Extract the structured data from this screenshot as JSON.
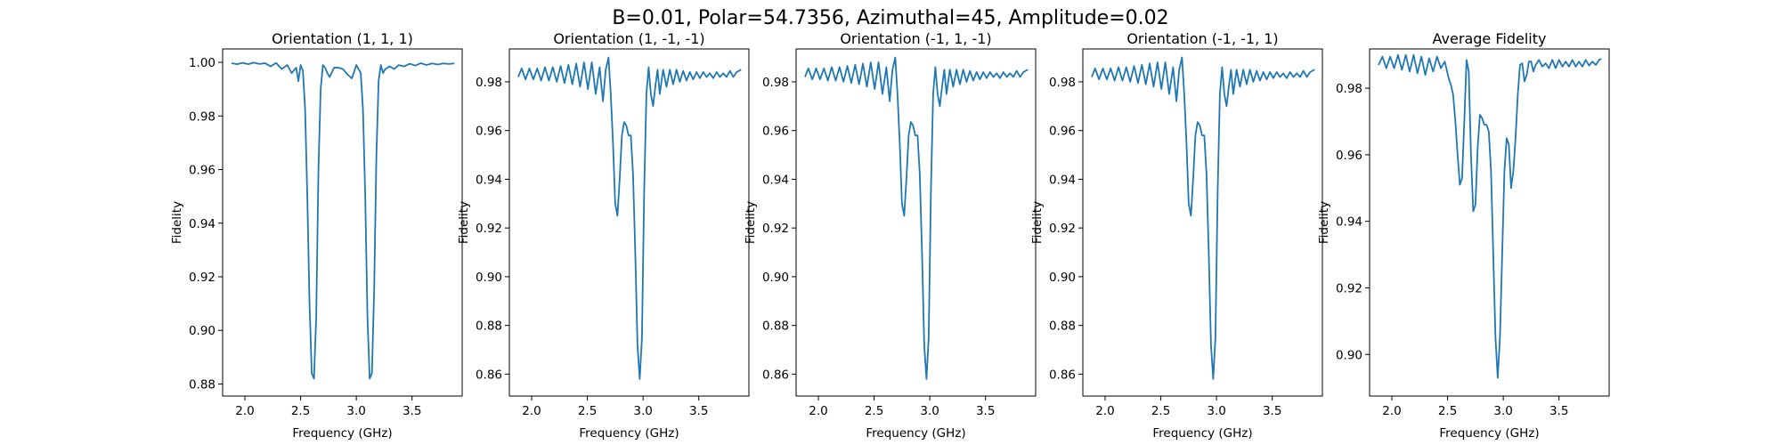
{
  "figure_title": "B=0.01, Polar=54.7356, Azimuthal=45, Amplitude=0.02",
  "colors": {
    "series": "#1f77b4",
    "axes": "#000000",
    "background": "#ffffff"
  },
  "chart_data": [
    {
      "type": "line",
      "title": "Orientation (1, 1, 1)",
      "xlabel": "Frequency (GHz)",
      "ylabel": "Fidelity",
      "xlim": [
        1.8,
        3.95
      ],
      "ylim": [
        0.8755,
        1.005
      ],
      "xticks": [
        2.0,
        2.5,
        3.0,
        3.5
      ],
      "xtick_labels": [
        "2.0",
        "2.5",
        "3.0",
        "3.5"
      ],
      "yticks": [
        0.88,
        0.9,
        0.92,
        0.94,
        0.96,
        0.98,
        1.0
      ],
      "ytick_labels": [
        "0.88",
        "0.90",
        "0.92",
        "0.94",
        "0.96",
        "0.98",
        "1.00"
      ],
      "grid": false,
      "series": [
        {
          "x": [
            1.88,
            1.93,
            1.98,
            2.03,
            2.08,
            2.13,
            2.18,
            2.23,
            2.28,
            2.33,
            2.38,
            2.42,
            2.46,
            2.48,
            2.5,
            2.52,
            2.54,
            2.56,
            2.58,
            2.6,
            2.62,
            2.64,
            2.66,
            2.68,
            2.7,
            2.72,
            2.74,
            2.76,
            2.8,
            2.84,
            2.88,
            2.92,
            2.96,
            3.0,
            3.04,
            3.06,
            3.08,
            3.1,
            3.12,
            3.14,
            3.16,
            3.18,
            3.2,
            3.22,
            3.24,
            3.26,
            3.28,
            3.3,
            3.34,
            3.38,
            3.43,
            3.48,
            3.53,
            3.58,
            3.63,
            3.68,
            3.73,
            3.78,
            3.83,
            3.88
          ],
          "y": [
            0.9997,
            0.9993,
            0.9998,
            0.9993,
            0.9999,
            0.9994,
            0.9997,
            0.9985,
            0.9998,
            0.9975,
            0.999,
            0.996,
            0.998,
            0.993,
            0.999,
            0.997,
            0.983,
            0.95,
            0.91,
            0.884,
            0.882,
            0.905,
            0.96,
            0.99,
            0.999,
            0.998,
            0.996,
            0.9945,
            0.998,
            0.998,
            0.9975,
            0.9955,
            0.994,
            0.999,
            0.996,
            0.982,
            0.95,
            0.905,
            0.882,
            0.884,
            0.915,
            0.965,
            0.993,
            0.999,
            0.996,
            0.9975,
            0.998,
            0.9985,
            0.9975,
            0.999,
            0.9985,
            0.9995,
            0.9988,
            0.9997,
            0.999,
            0.9996,
            0.9992,
            0.9996,
            0.9994,
            0.9996
          ]
        }
      ]
    },
    {
      "type": "line",
      "title": "Orientation (1, -1, -1)",
      "xlabel": "Frequency (GHz)",
      "ylabel": "Fidelity",
      "xlim": [
        1.8,
        3.95
      ],
      "ylim": [
        0.851,
        0.9935
      ],
      "xticks": [
        2.0,
        2.5,
        3.0,
        3.5
      ],
      "xtick_labels": [
        "2.0",
        "2.5",
        "3.0",
        "3.5"
      ],
      "yticks": [
        0.86,
        0.88,
        0.9,
        0.92,
        0.94,
        0.96,
        0.98
      ],
      "ytick_labels": [
        "0.86",
        "0.88",
        "0.90",
        "0.92",
        "0.94",
        "0.96",
        "0.98"
      ],
      "grid": false,
      "series": [
        {
          "x": [
            1.88,
            1.91,
            1.945,
            1.98,
            2.015,
            2.05,
            2.085,
            2.12,
            2.155,
            2.19,
            2.225,
            2.26,
            2.295,
            2.33,
            2.365,
            2.4,
            2.435,
            2.47,
            2.505,
            2.54,
            2.575,
            2.61,
            2.64,
            2.665,
            2.69,
            2.71,
            2.73,
            2.75,
            2.77,
            2.79,
            2.81,
            2.83,
            2.85,
            2.87,
            2.89,
            2.91,
            2.93,
            2.95,
            2.97,
            2.99,
            3.01,
            3.03,
            3.05,
            3.07,
            3.09,
            3.11,
            3.13,
            3.15,
            3.18,
            3.21,
            3.24,
            3.27,
            3.3,
            3.33,
            3.36,
            3.39,
            3.42,
            3.45,
            3.48,
            3.51,
            3.54,
            3.57,
            3.6,
            3.63,
            3.66,
            3.69,
            3.72,
            3.75,
            3.78,
            3.81,
            3.84,
            3.88
          ],
          "y": [
            0.982,
            0.9855,
            0.981,
            0.9855,
            0.981,
            0.9855,
            0.9805,
            0.986,
            0.9805,
            0.986,
            0.98,
            0.9865,
            0.9795,
            0.987,
            0.979,
            0.9875,
            0.978,
            0.988,
            0.977,
            0.988,
            0.975,
            0.986,
            0.972,
            0.985,
            0.99,
            0.975,
            0.955,
            0.93,
            0.925,
            0.94,
            0.958,
            0.9635,
            0.962,
            0.958,
            0.958,
            0.942,
            0.91,
            0.872,
            0.858,
            0.875,
            0.935,
            0.975,
            0.986,
            0.975,
            0.97,
            0.978,
            0.985,
            0.975,
            0.985,
            0.978,
            0.985,
            0.979,
            0.985,
            0.98,
            0.9845,
            0.9805,
            0.984,
            0.981,
            0.984,
            0.9815,
            0.984,
            0.982,
            0.9835,
            0.9815,
            0.984,
            0.982,
            0.9835,
            0.982,
            0.9845,
            0.982,
            0.984,
            0.985
          ]
        }
      ]
    },
    {
      "type": "line",
      "title": "Orientation (-1, 1, -1)",
      "xlabel": "Frequency (GHz)",
      "ylabel": "Fidelity",
      "xlim": [
        1.8,
        3.95
      ],
      "ylim": [
        0.851,
        0.9935
      ],
      "xticks": [
        2.0,
        2.5,
        3.0,
        3.5
      ],
      "xtick_labels": [
        "2.0",
        "2.5",
        "3.0",
        "3.5"
      ],
      "yticks": [
        0.86,
        0.88,
        0.9,
        0.92,
        0.94,
        0.96,
        0.98
      ],
      "ytick_labels": [
        "0.86",
        "0.88",
        "0.90",
        "0.92",
        "0.94",
        "0.96",
        "0.98"
      ],
      "grid": false,
      "series": [
        {
          "x": [
            1.88,
            1.91,
            1.945,
            1.98,
            2.015,
            2.05,
            2.085,
            2.12,
            2.155,
            2.19,
            2.225,
            2.26,
            2.295,
            2.33,
            2.365,
            2.4,
            2.435,
            2.47,
            2.505,
            2.54,
            2.575,
            2.61,
            2.64,
            2.665,
            2.69,
            2.71,
            2.73,
            2.75,
            2.77,
            2.79,
            2.81,
            2.83,
            2.85,
            2.87,
            2.89,
            2.91,
            2.93,
            2.95,
            2.97,
            2.99,
            3.01,
            3.03,
            3.05,
            3.07,
            3.09,
            3.11,
            3.13,
            3.15,
            3.18,
            3.21,
            3.24,
            3.27,
            3.3,
            3.33,
            3.36,
            3.39,
            3.42,
            3.45,
            3.48,
            3.51,
            3.54,
            3.57,
            3.6,
            3.63,
            3.66,
            3.69,
            3.72,
            3.75,
            3.78,
            3.81,
            3.84,
            3.88
          ],
          "y": [
            0.982,
            0.9855,
            0.981,
            0.9855,
            0.981,
            0.9855,
            0.9805,
            0.986,
            0.9805,
            0.986,
            0.98,
            0.9865,
            0.9795,
            0.987,
            0.979,
            0.9875,
            0.978,
            0.988,
            0.977,
            0.988,
            0.975,
            0.986,
            0.972,
            0.985,
            0.99,
            0.975,
            0.955,
            0.93,
            0.925,
            0.94,
            0.958,
            0.9635,
            0.962,
            0.958,
            0.958,
            0.942,
            0.91,
            0.872,
            0.858,
            0.875,
            0.935,
            0.975,
            0.986,
            0.975,
            0.97,
            0.978,
            0.985,
            0.975,
            0.985,
            0.978,
            0.985,
            0.979,
            0.985,
            0.98,
            0.9845,
            0.9805,
            0.984,
            0.981,
            0.984,
            0.9815,
            0.984,
            0.982,
            0.9835,
            0.9815,
            0.984,
            0.982,
            0.9835,
            0.982,
            0.9845,
            0.982,
            0.984,
            0.985
          ]
        }
      ]
    },
    {
      "type": "line",
      "title": "Orientation (-1, -1, 1)",
      "xlabel": "Frequency (GHz)",
      "ylabel": "Fidelity",
      "xlim": [
        1.8,
        3.95
      ],
      "ylim": [
        0.851,
        0.9935
      ],
      "xticks": [
        2.0,
        2.5,
        3.0,
        3.5
      ],
      "xtick_labels": [
        "2.0",
        "2.5",
        "3.0",
        "3.5"
      ],
      "yticks": [
        0.86,
        0.88,
        0.9,
        0.92,
        0.94,
        0.96,
        0.98
      ],
      "ytick_labels": [
        "0.86",
        "0.88",
        "0.90",
        "0.92",
        "0.94",
        "0.96",
        "0.98"
      ],
      "grid": false,
      "series": [
        {
          "x": [
            1.88,
            1.91,
            1.945,
            1.98,
            2.015,
            2.05,
            2.085,
            2.12,
            2.155,
            2.19,
            2.225,
            2.26,
            2.295,
            2.33,
            2.365,
            2.4,
            2.435,
            2.47,
            2.505,
            2.54,
            2.575,
            2.61,
            2.64,
            2.665,
            2.69,
            2.71,
            2.73,
            2.75,
            2.77,
            2.79,
            2.81,
            2.83,
            2.85,
            2.87,
            2.89,
            2.91,
            2.93,
            2.95,
            2.97,
            2.99,
            3.01,
            3.03,
            3.05,
            3.07,
            3.09,
            3.11,
            3.13,
            3.15,
            3.18,
            3.21,
            3.24,
            3.27,
            3.3,
            3.33,
            3.36,
            3.39,
            3.42,
            3.45,
            3.48,
            3.51,
            3.54,
            3.57,
            3.6,
            3.63,
            3.66,
            3.69,
            3.72,
            3.75,
            3.78,
            3.81,
            3.84,
            3.88
          ],
          "y": [
            0.982,
            0.9855,
            0.981,
            0.9855,
            0.981,
            0.9855,
            0.9805,
            0.986,
            0.9805,
            0.986,
            0.98,
            0.9865,
            0.9795,
            0.987,
            0.979,
            0.9875,
            0.978,
            0.988,
            0.977,
            0.988,
            0.975,
            0.986,
            0.972,
            0.985,
            0.99,
            0.975,
            0.955,
            0.93,
            0.925,
            0.94,
            0.958,
            0.9635,
            0.962,
            0.958,
            0.958,
            0.942,
            0.91,
            0.872,
            0.858,
            0.875,
            0.935,
            0.975,
            0.986,
            0.975,
            0.97,
            0.978,
            0.985,
            0.975,
            0.985,
            0.978,
            0.985,
            0.979,
            0.985,
            0.98,
            0.9845,
            0.9805,
            0.984,
            0.981,
            0.984,
            0.9815,
            0.984,
            0.982,
            0.9835,
            0.9815,
            0.984,
            0.982,
            0.9835,
            0.982,
            0.9845,
            0.982,
            0.984,
            0.985
          ]
        }
      ]
    },
    {
      "type": "line",
      "title": "Average Fidelity",
      "xlabel": "Frequency (GHz)",
      "ylabel": "Fidelity",
      "xlim": [
        1.8,
        3.95
      ],
      "ylim": [
        0.8875,
        0.9918
      ],
      "xticks": [
        2.0,
        2.5,
        3.0,
        3.5
      ],
      "xtick_labels": [
        "2.0",
        "2.5",
        "3.0",
        "3.5"
      ],
      "yticks": [
        0.9,
        0.92,
        0.94,
        0.96,
        0.98
      ],
      "ytick_labels": [
        "0.90",
        "0.92",
        "0.94",
        "0.96",
        "0.98"
      ],
      "grid": false,
      "series": [
        {
          "x": [
            1.88,
            1.915,
            1.95,
            1.985,
            2.02,
            2.055,
            2.09,
            2.125,
            2.16,
            2.195,
            2.23,
            2.265,
            2.3,
            2.335,
            2.37,
            2.405,
            2.44,
            2.475,
            2.51,
            2.53,
            2.55,
            2.57,
            2.59,
            2.61,
            2.63,
            2.65,
            2.67,
            2.69,
            2.71,
            2.73,
            2.75,
            2.77,
            2.79,
            2.81,
            2.83,
            2.85,
            2.87,
            2.89,
            2.91,
            2.93,
            2.95,
            2.97,
            2.99,
            3.01,
            3.03,
            3.05,
            3.07,
            3.09,
            3.11,
            3.13,
            3.15,
            3.17,
            3.19,
            3.21,
            3.23,
            3.25,
            3.27,
            3.29,
            3.32,
            3.35,
            3.38,
            3.41,
            3.44,
            3.47,
            3.5,
            3.53,
            3.56,
            3.59,
            3.62,
            3.65,
            3.68,
            3.71,
            3.74,
            3.77,
            3.8,
            3.83,
            3.86,
            3.88
          ],
          "y": [
            0.987,
            0.9895,
            0.986,
            0.9895,
            0.986,
            0.99,
            0.9855,
            0.99,
            0.985,
            0.99,
            0.9845,
            0.9895,
            0.984,
            0.989,
            0.985,
            0.9895,
            0.986,
            0.988,
            0.983,
            0.981,
            0.978,
            0.97,
            0.96,
            0.951,
            0.953,
            0.97,
            0.9885,
            0.985,
            0.96,
            0.943,
            0.945,
            0.962,
            0.972,
            0.971,
            0.969,
            0.969,
            0.967,
            0.955,
            0.93,
            0.905,
            0.893,
            0.905,
            0.93,
            0.955,
            0.965,
            0.963,
            0.95,
            0.955,
            0.965,
            0.978,
            0.987,
            0.9875,
            0.982,
            0.984,
            0.988,
            0.988,
            0.985,
            0.987,
            0.9885,
            0.9865,
            0.9875,
            0.986,
            0.9885,
            0.986,
            0.9885,
            0.9865,
            0.988,
            0.9865,
            0.9885,
            0.9865,
            0.988,
            0.9865,
            0.9885,
            0.9868,
            0.988,
            0.987,
            0.9885,
            0.9888
          ]
        }
      ]
    }
  ]
}
